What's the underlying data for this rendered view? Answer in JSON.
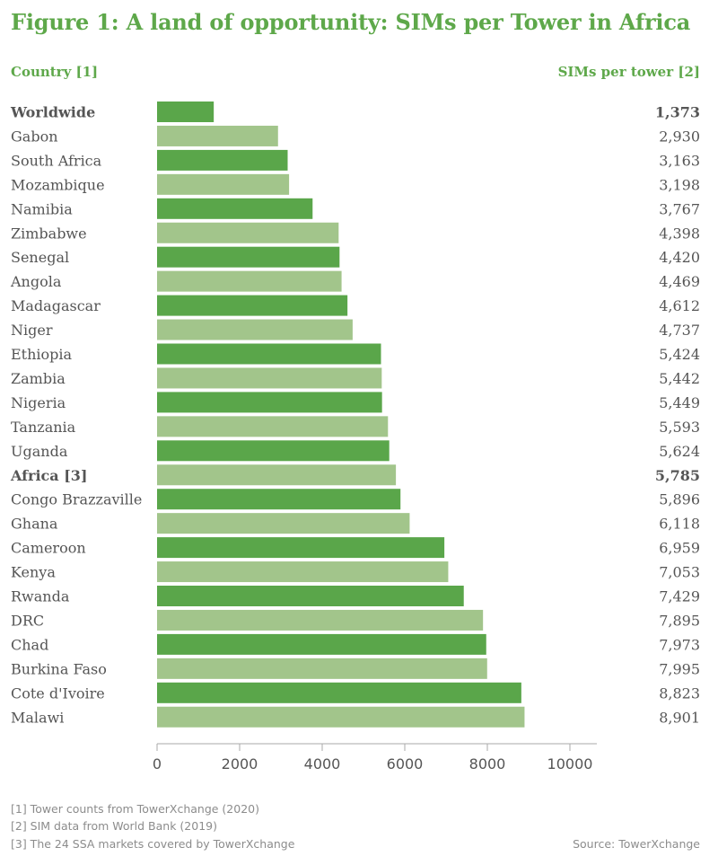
{
  "title": "Figure 1: A land of opportunity: SIMs per Tower in Africa",
  "header": {
    "left": "Country [1]",
    "right": "SIMs per tower [2]"
  },
  "footnotes": [
    "[1] Tower counts from TowerXchange (2020)",
    "[2] SIM data from World Bank (2019)",
    "[3] The 24 SSA markets covered by TowerXchange"
  ],
  "source": "Source: TowerXchange",
  "colors": {
    "accent": "#5ea84a",
    "bar_dark": "#5aa64a",
    "bar_light": "#a2c58b"
  },
  "chart_data": {
    "type": "bar",
    "orientation": "horizontal",
    "categories": [
      "Worldwide",
      "Gabon",
      "South Africa",
      "Mozambique",
      "Namibia",
      "Zimbabwe",
      "Senegal",
      "Angola",
      "Madagascar",
      "Niger",
      "Ethiopia",
      "Zambia",
      "Nigeria",
      "Tanzania",
      "Uganda",
      "Africa [3]",
      "Congo Brazzaville",
      "Ghana",
      "Cameroon",
      "Kenya",
      "Rwanda",
      "DRC",
      "Chad",
      "Burkina Faso",
      "Cote d'Ivoire",
      "Malawi"
    ],
    "values": [
      1373,
      2930,
      3163,
      3198,
      3767,
      4398,
      4420,
      4469,
      4612,
      4737,
      5424,
      5442,
      5449,
      5593,
      5624,
      5785,
      5896,
      6118,
      6959,
      7053,
      7429,
      7895,
      7973,
      7995,
      8823,
      8901
    ],
    "value_labels": [
      "1,373",
      "2,930",
      "3,163",
      "3,198",
      "3,767",
      "4,398",
      "4,420",
      "4,469",
      "4,612",
      "4,737",
      "5,424",
      "5,442",
      "5,449",
      "5,593",
      "5,624",
      "5,785",
      "5,896",
      "6,118",
      "6,959",
      "7,053",
      "7,429",
      "7,895",
      "7,973",
      "7,995",
      "8,823",
      "8,901"
    ],
    "bold_categories": [
      "Worldwide",
      "Africa [3]"
    ],
    "xlim": [
      0,
      10000
    ],
    "xticks": [
      0,
      2000,
      4000,
      6000,
      8000,
      10000
    ],
    "xlabel": "",
    "ylabel": "",
    "grid": false,
    "legend": "none"
  }
}
